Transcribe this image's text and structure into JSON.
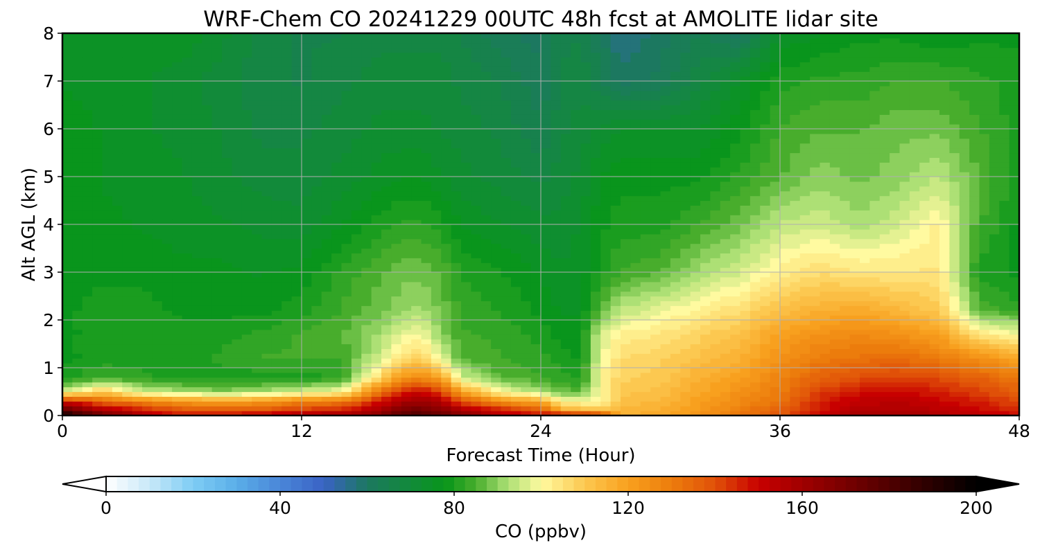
{
  "chart_data": {
    "type": "heatmap",
    "title": "WRF-Chem CO  20241229 00UTC 48h fcst at AMOLITE lidar site",
    "xlabel": "Forecast Time (Hour)",
    "ylabel": "Alt AGL (km)",
    "xlim": [
      0,
      48
    ],
    "ylim": [
      0,
      8
    ],
    "x_ticks": [
      0,
      12,
      24,
      36,
      48
    ],
    "y_ticks": [
      0,
      1,
      2,
      3,
      4,
      5,
      6,
      7,
      8
    ],
    "grid": true,
    "colorbar": {
      "label": "CO  (ppbv)",
      "orientation": "horizontal",
      "position": "bottom",
      "ticks": [
        0,
        40,
        80,
        120,
        160,
        200
      ],
      "range": [
        0,
        200
      ],
      "extend": "both",
      "color_stops": [
        {
          "value": 0,
          "color": "#ffffff"
        },
        {
          "value": 10,
          "color": "#c8e8f8"
        },
        {
          "value": 20,
          "color": "#7ecdf4"
        },
        {
          "value": 30,
          "color": "#5aaee8"
        },
        {
          "value": 40,
          "color": "#4a86d8"
        },
        {
          "value": 50,
          "color": "#3a62c4"
        },
        {
          "value": 60,
          "color": "#1c7860"
        },
        {
          "value": 70,
          "color": "#128a3a"
        },
        {
          "value": 78,
          "color": "#08961a"
        },
        {
          "value": 85,
          "color": "#48ad2c"
        },
        {
          "value": 92,
          "color": "#a8de72"
        },
        {
          "value": 100,
          "color": "#fffaa0"
        },
        {
          "value": 110,
          "color": "#fcc850"
        },
        {
          "value": 120,
          "color": "#f8a01e"
        },
        {
          "value": 130,
          "color": "#ec7c0c"
        },
        {
          "value": 140,
          "color": "#e05008"
        },
        {
          "value": 150,
          "color": "#c80000"
        },
        {
          "value": 165,
          "color": "#8c0000"
        },
        {
          "value": 180,
          "color": "#500000"
        },
        {
          "value": 200,
          "color": "#000000"
        }
      ]
    },
    "grid_hours": [
      0,
      2,
      4,
      6,
      8,
      10,
      12,
      14,
      16,
      17,
      18,
      19,
      20,
      22,
      24,
      25,
      26,
      27,
      28,
      30,
      32,
      34,
      36,
      38,
      40,
      42,
      44,
      46,
      48
    ],
    "grid_alt_km": [
      0,
      0.1,
      0.3,
      0.5,
      0.8,
      1.2,
      1.7,
      2.2,
      3,
      4,
      5,
      6,
      7,
      8
    ],
    "values_ppbv": [
      [
        198,
        175,
        158,
        148,
        150,
        156,
        160,
        162,
        168,
        178,
        182,
        175,
        168,
        155,
        150,
        162,
        160,
        158,
        116,
        118,
        124,
        132,
        138,
        152,
        160,
        160,
        156,
        152,
        150
      ],
      [
        180,
        160,
        150,
        140,
        138,
        140,
        145,
        148,
        160,
        170,
        172,
        168,
        160,
        148,
        140,
        118,
        115,
        112,
        114,
        116,
        122,
        130,
        136,
        148,
        156,
        157,
        154,
        150,
        145
      ],
      [
        150,
        135,
        128,
        122,
        120,
        122,
        128,
        130,
        148,
        158,
        162,
        156,
        140,
        125,
        118,
        102,
        100,
        100,
        112,
        114,
        120,
        126,
        132,
        146,
        152,
        154,
        150,
        146,
        140
      ],
      [
        95,
        110,
        96,
        92,
        90,
        92,
        96,
        100,
        132,
        146,
        150,
        142,
        120,
        100,
        92,
        88,
        86,
        100,
        110,
        112,
        118,
        124,
        130,
        142,
        148,
        150,
        146,
        142,
        136
      ],
      [
        80,
        84,
        82,
        80,
        80,
        80,
        80,
        82,
        108,
        122,
        126,
        118,
        96,
        86,
        84,
        82,
        80,
        100,
        108,
        110,
        116,
        120,
        128,
        136,
        140,
        142,
        140,
        136,
        130
      ],
      [
        78,
        80,
        80,
        80,
        82,
        84,
        84,
        84,
        96,
        104,
        108,
        98,
        86,
        84,
        82,
        80,
        78,
        98,
        106,
        108,
        112,
        116,
        124,
        130,
        132,
        134,
        130,
        125,
        118
      ],
      [
        78,
        80,
        80,
        80,
        80,
        82,
        84,
        86,
        92,
        98,
        100,
        90,
        84,
        83,
        80,
        78,
        77,
        96,
        102,
        104,
        108,
        112,
        120,
        124,
        126,
        124,
        120,
        104,
        100
      ],
      [
        78,
        80,
        80,
        78,
        78,
        78,
        80,
        84,
        88,
        90,
        92,
        88,
        83,
        81,
        78,
        76,
        76,
        86,
        94,
        98,
        102,
        106,
        112,
        116,
        118,
        114,
        110,
        86,
        82
      ],
      [
        78,
        78,
        78,
        77,
        77,
        76,
        77,
        82,
        86,
        88,
        88,
        86,
        81,
        79,
        76,
        74,
        75,
        80,
        84,
        86,
        92,
        96,
        102,
        106,
        104,
        104,
        104,
        80,
        78
      ],
      [
        78,
        77,
        76,
        75,
        74,
        73,
        72,
        76,
        80,
        82,
        82,
        80,
        76,
        74,
        72,
        72,
        74,
        78,
        80,
        80,
        84,
        88,
        94,
        96,
        92,
        96,
        102,
        84,
        78
      ],
      [
        78,
        76,
        75,
        74,
        72,
        70,
        70,
        72,
        75,
        76,
        76,
        74,
        72,
        70,
        68,
        70,
        72,
        76,
        78,
        78,
        78,
        82,
        86,
        90,
        88,
        90,
        94,
        86,
        80
      ],
      [
        78,
        76,
        74,
        73,
        71,
        68,
        68,
        70,
        72,
        72,
        72,
        71,
        70,
        68,
        64,
        68,
        70,
        72,
        74,
        74,
        74,
        78,
        84,
        86,
        86,
        88,
        88,
        84,
        80
      ],
      [
        76,
        75,
        74,
        72,
        70,
        67,
        66,
        68,
        70,
        70,
        70,
        70,
        68,
        66,
        62,
        66,
        68,
        64,
        60,
        62,
        68,
        74,
        80,
        82,
        82,
        84,
        84,
        82,
        80
      ],
      [
        74,
        74,
        76,
        76,
        72,
        68,
        66,
        66,
        68,
        68,
        68,
        68,
        66,
        62,
        60,
        66,
        66,
        62,
        56,
        60,
        64,
        60,
        74,
        76,
        78,
        78,
        76,
        78,
        78
      ]
    ]
  }
}
